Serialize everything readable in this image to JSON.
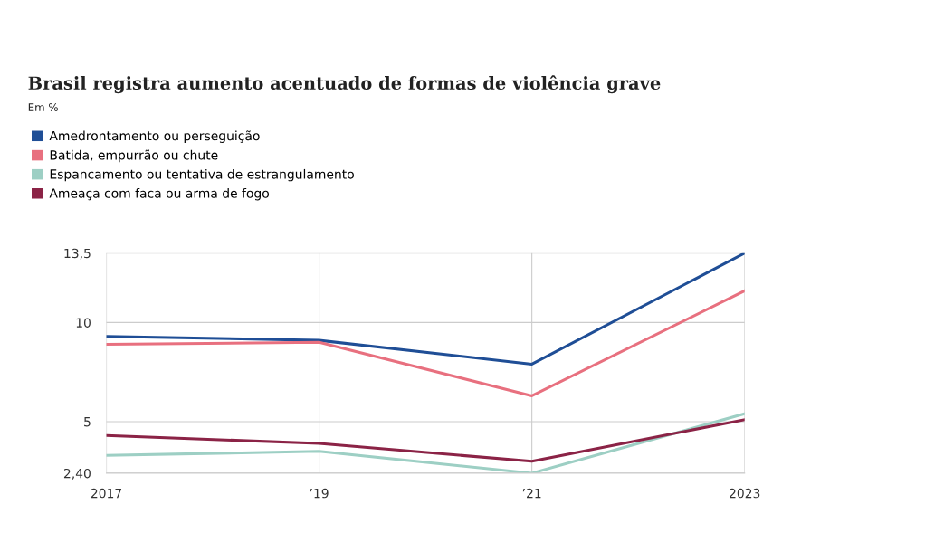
{
  "chart_data": {
    "type": "line",
    "title": "Brasil registra aumento acentuado de formas de violência grave",
    "subtitle": "Em %",
    "categories": [
      "2017",
      "’19",
      "’21",
      "2023"
    ],
    "series": [
      {
        "name": "Amedrontamento ou perseguição",
        "color": "#1f4e96",
        "values": [
          9.3,
          9.1,
          7.9,
          13.5
        ]
      },
      {
        "name": "Batida, empurrão ou chute",
        "color": "#e8707f",
        "values": [
          8.9,
          9.0,
          6.3,
          11.6
        ]
      },
      {
        "name": "Espancamento ou tentativa de estrangulamento",
        "color": "#9dcfc4",
        "values": [
          3.3,
          3.5,
          2.4,
          5.4
        ]
      },
      {
        "name": "Ameaça com faca ou arma de fogo",
        "color": "#8b2346",
        "values": [
          4.3,
          3.9,
          3.0,
          5.1
        ]
      }
    ],
    "ylim": [
      2.4,
      13.5
    ],
    "yticks": [
      {
        "value": 2.4,
        "label": "2,40"
      },
      5,
      10,
      {
        "value": 13.5,
        "label": "13,5"
      }
    ],
    "grid": true,
    "legend": "top left",
    "marker": "none",
    "line_style": "solid"
  }
}
